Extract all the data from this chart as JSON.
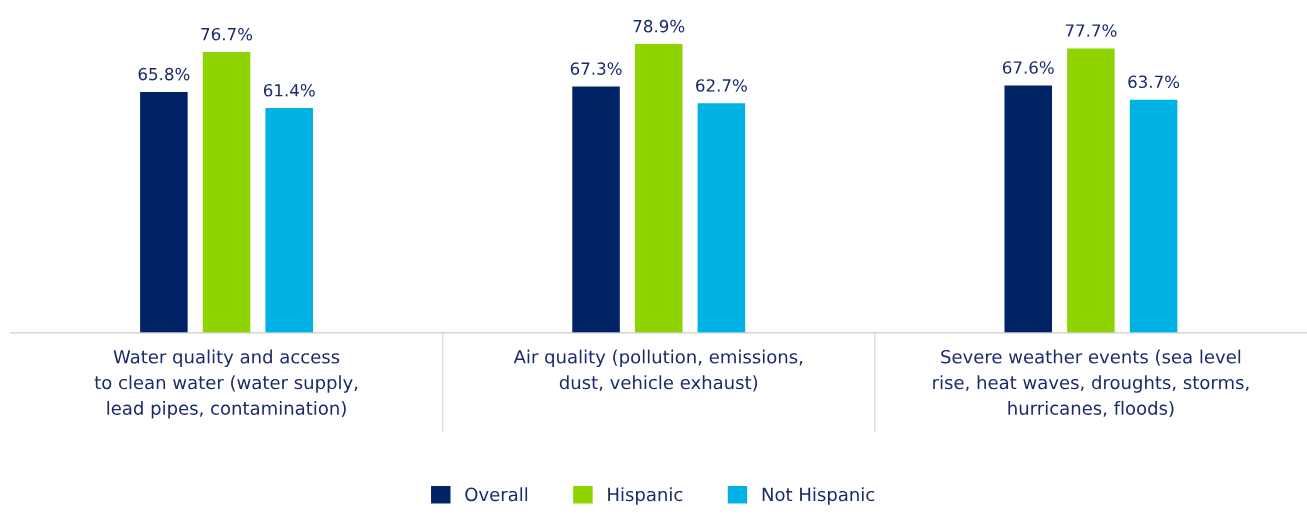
{
  "chart_data": {
    "type": "bar",
    "categories": [
      "Water quality and access\nto clean water (water supply,\nlead pipes, contamination)",
      "Air quality (pollution, emissions,\ndust, vehicle exhaust)",
      "Severe weather events (sea level\nrise, heat waves, droughts, storms,\nhurricanes, floods)"
    ],
    "series": [
      {
        "name": "Overall",
        "color": "#002366",
        "values": [
          65.8,
          67.3,
          67.6
        ],
        "value_labels": [
          "65.8%",
          "67.3%",
          "67.6%"
        ]
      },
      {
        "name": "Hispanic",
        "color": "#8fd400",
        "values": [
          76.7,
          78.9,
          77.7
        ],
        "value_labels": [
          "76.7%",
          "78.9%",
          "77.7%"
        ]
      },
      {
        "name": "Not Hispanic",
        "color": "#00b2e3",
        "values": [
          61.4,
          62.7,
          63.7
        ],
        "value_labels": [
          "61.4%",
          "62.7%",
          "63.7%"
        ]
      }
    ],
    "legend": "bottom",
    "grid": false
  }
}
